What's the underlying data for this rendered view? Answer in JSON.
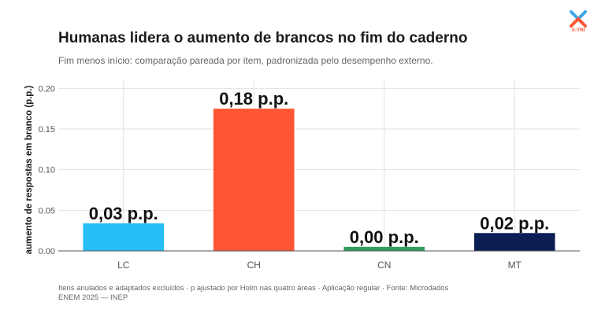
{
  "title": "Humanas lidera o aumento de brancos no fim do caderno",
  "subtitle": "Fim menos início: comparação pareada por item, padronizada pelo desempenho externo.",
  "footnote_line1": "Itens anulados e adaptados excluídos · p ajustado por Holm nas quatro áreas · Aplicação regular · Fonte: Microdados",
  "footnote_line2": "ENEM 2025 — INEP",
  "logo": {
    "icon": "x-tri-logo-icon",
    "text": "X-TRI",
    "color_orange": "#ff5533",
    "color_blue": "#3aa6e8"
  },
  "chart_data": {
    "type": "bar",
    "categories": [
      "LC",
      "CH",
      "CN",
      "MT"
    ],
    "values": [
      0.034,
      0.175,
      0.005,
      0.022
    ],
    "data_labels": [
      "0,03 p.p.",
      "0,18 p.p.",
      "0,00 p.p.",
      "0,02 p.p."
    ],
    "colors": [
      "#27bef8",
      "#ff5533",
      "#2e9e5b",
      "#0c1f54"
    ],
    "ylabel": "aumento de respostas em branco (p.p.)",
    "ylim": [
      0,
      0.21
    ],
    "yticks": [
      0.0,
      0.05,
      0.1,
      0.15,
      0.2
    ],
    "ytick_labels": [
      "0.00",
      "0.05",
      "0.10",
      "0.15",
      "0.20"
    ],
    "grid": true
  }
}
